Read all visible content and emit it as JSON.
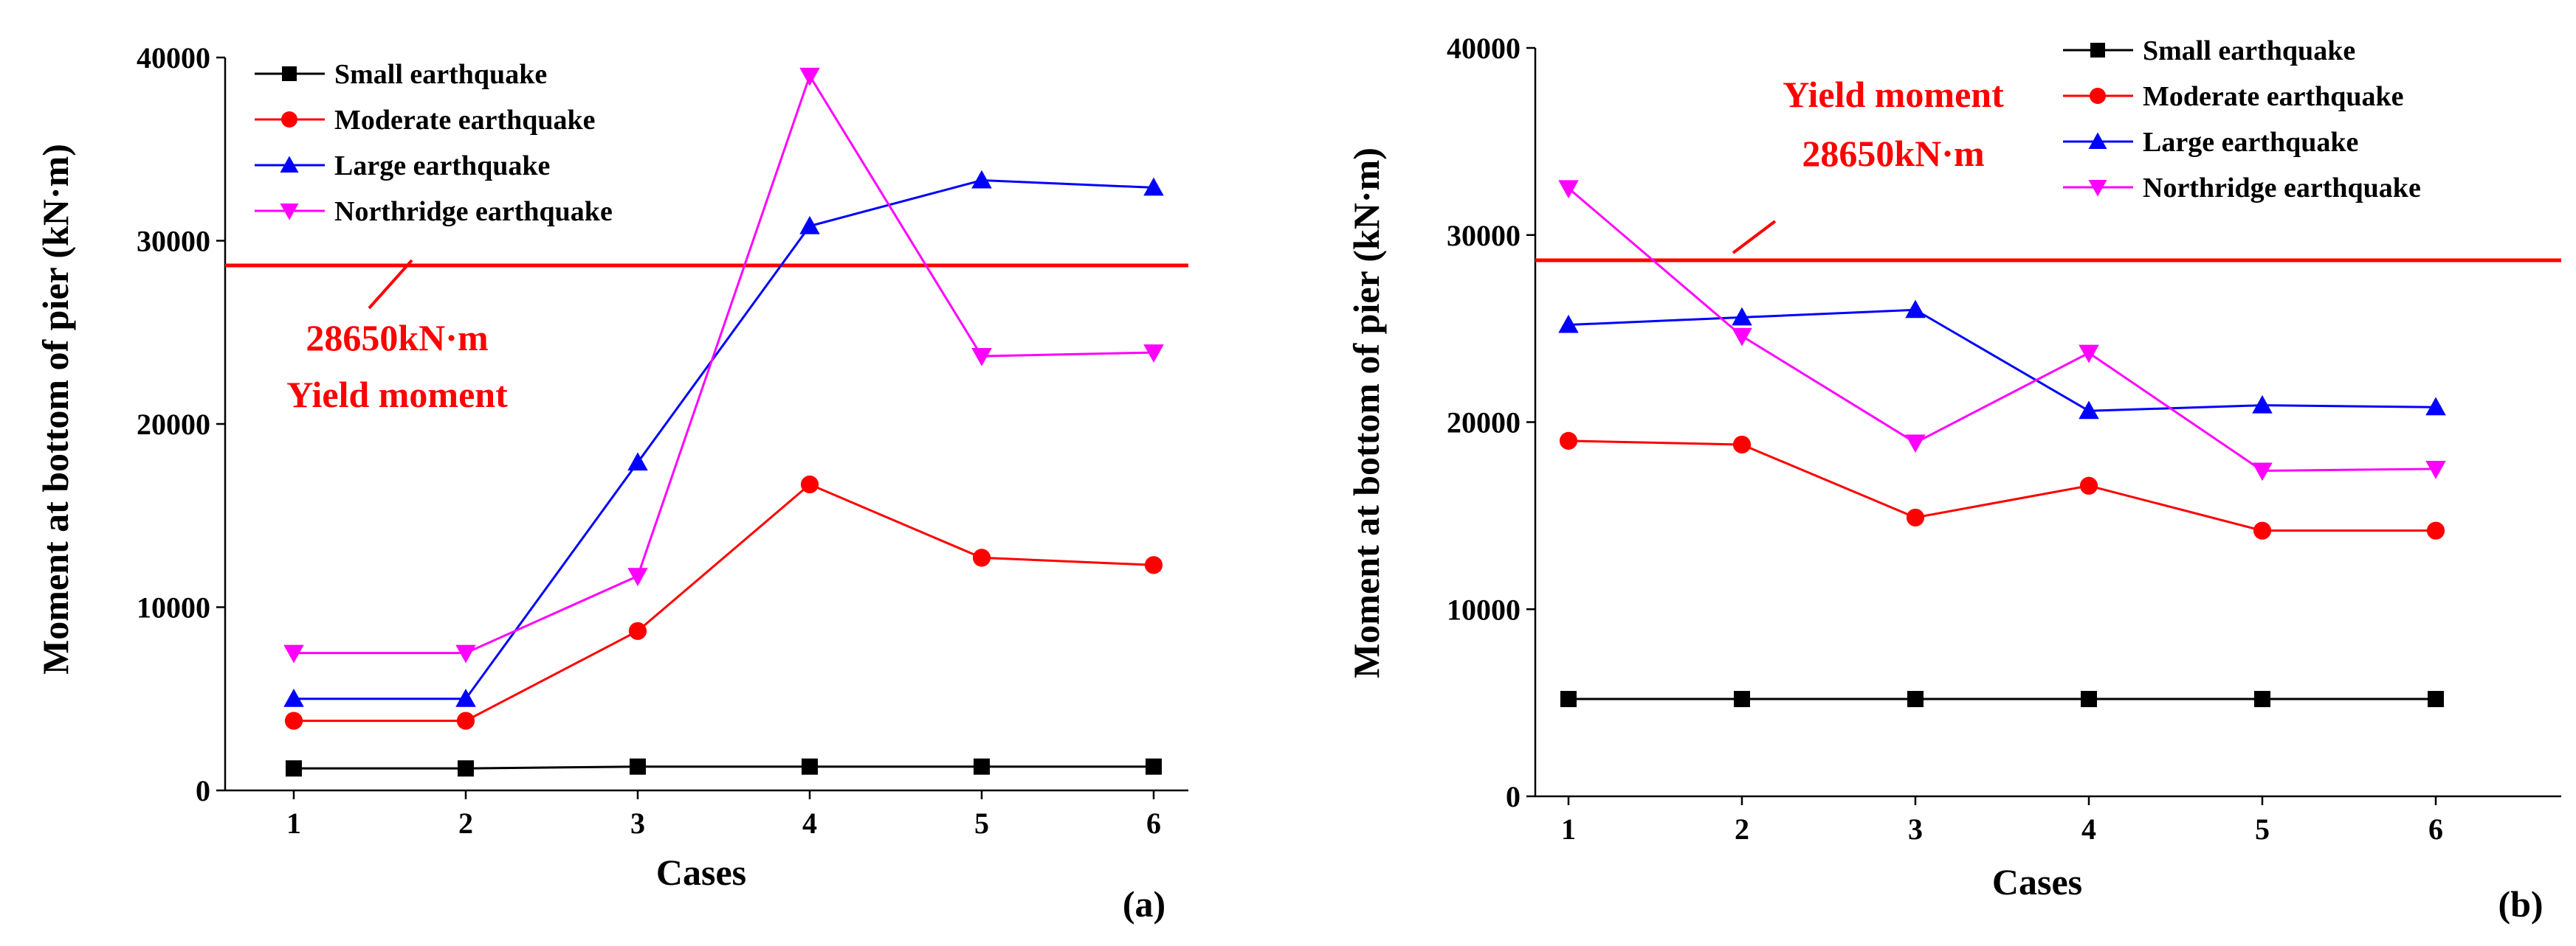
{
  "chart_data": [
    {
      "panel": "(a)",
      "type": "line",
      "xlabel": "Cases",
      "ylabel": "Moment at bottom of pier (kN·m)",
      "categories": [
        "1",
        "2",
        "3",
        "4",
        "5",
        "6"
      ],
      "ylim": [
        0,
        40000
      ],
      "yticks": [
        "0",
        "10000",
        "20000",
        "30000",
        "40000"
      ],
      "series": [
        {
          "name": "Small earthquake",
          "color": "#000000",
          "marker": "square",
          "values": [
            1200,
            1200,
            1300,
            1300,
            1300,
            1300
          ]
        },
        {
          "name": "Moderate earthquake",
          "color": "#ff0000",
          "marker": "circle",
          "values": [
            3800,
            3800,
            8700,
            16700,
            12700,
            12300
          ]
        },
        {
          "name": "Large earthquake",
          "color": "#0000ff",
          "marker": "triangle-up",
          "values": [
            5000,
            5000,
            17900,
            30800,
            33300,
            32900
          ]
        },
        {
          "name": "Northridge earthquake",
          "color": "#ff00ff",
          "marker": "triangle-down",
          "values": [
            7500,
            7500,
            11700,
            39000,
            23700,
            23900
          ]
        }
      ],
      "reference_line": {
        "value": 28650,
        "label_value": "28650kN·m",
        "label_name": "Yield moment",
        "color": "#ff0000"
      }
    },
    {
      "panel": "(b)",
      "type": "line",
      "xlabel": "Cases",
      "ylabel": "Moment at bottom of pier (kN·m)",
      "categories": [
        "1",
        "2",
        "3",
        "4",
        "5",
        "6"
      ],
      "ylim": [
        0,
        40000
      ],
      "yticks": [
        "0",
        "10000",
        "20000",
        "30000",
        "40000"
      ],
      "series": [
        {
          "name": "Small earthquake",
          "color": "#000000",
          "marker": "square",
          "values": [
            5200,
            5200,
            5200,
            5200,
            5200,
            5200
          ]
        },
        {
          "name": "Moderate earthquake",
          "color": "#ff0000",
          "marker": "circle",
          "values": [
            19000,
            18800,
            14900,
            16600,
            14200,
            14200
          ]
        },
        {
          "name": "Large earthquake",
          "color": "#0000ff",
          "marker": "triangle-up",
          "values": [
            25200,
            25600,
            26000,
            20600,
            20900,
            20800
          ]
        },
        {
          "name": "Northridge earthquake",
          "color": "#ff00ff",
          "marker": "triangle-down",
          "values": [
            32500,
            24600,
            18900,
            23700,
            17400,
            17500
          ]
        }
      ],
      "reference_line": {
        "value": 28650,
        "label_value": "28650kN·m",
        "label_name": "Yield moment",
        "color": "#ff0000"
      }
    }
  ]
}
